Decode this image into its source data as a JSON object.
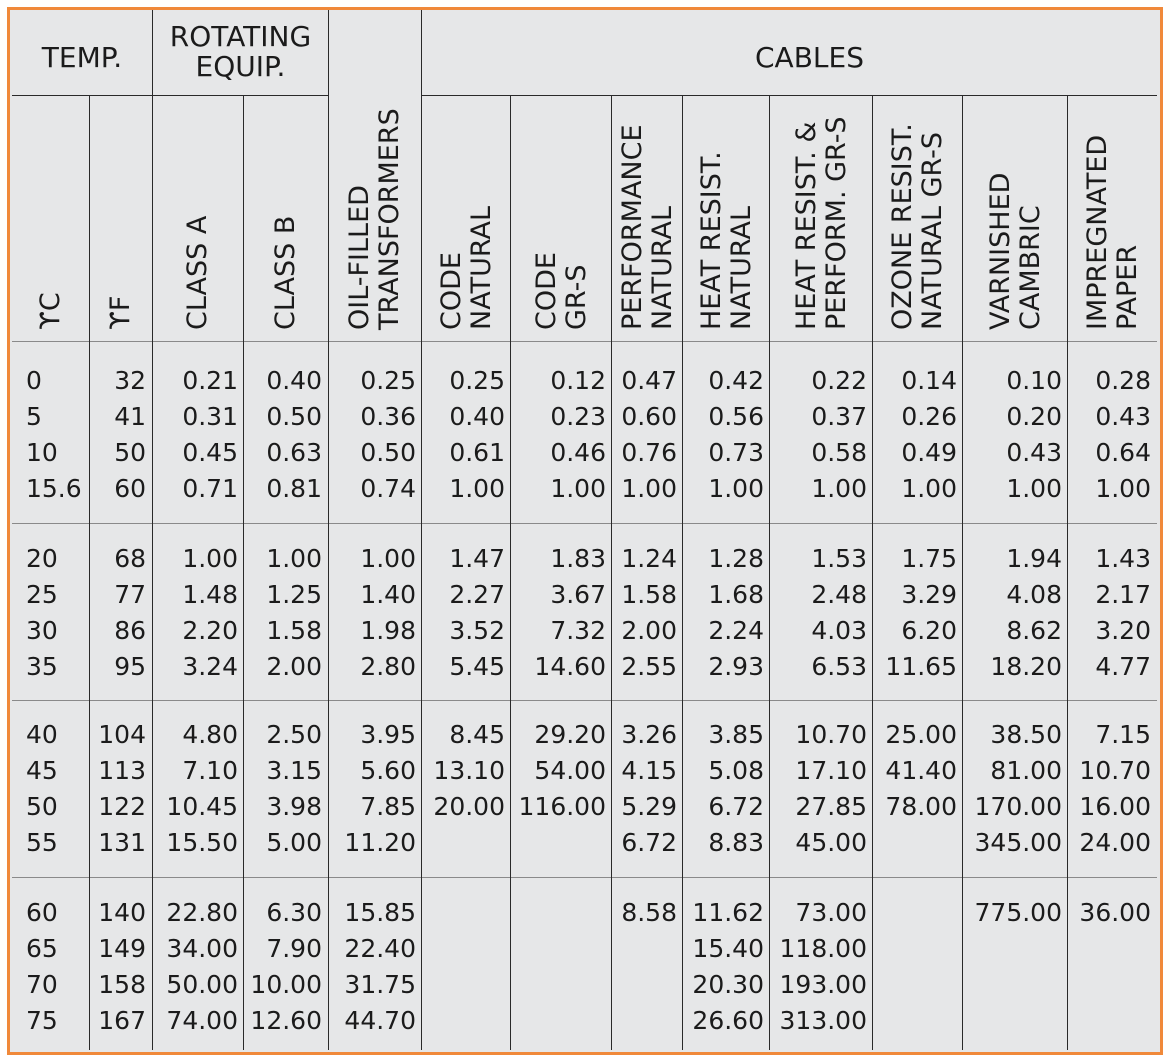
{
  "headers": {
    "temp": "TEMP.",
    "rotating_equip": "ROTATING\nEQUIP.",
    "cables": "CABLES"
  },
  "column_labels": [
    "ϒC",
    "ϒF",
    "CLASS A",
    "CLASS B",
    "OIL-FILLED\nTRANSFORMERS",
    "CODE\nNATURAL",
    "CODE\nGR-S",
    "PERFORMANCE\nNATURAL",
    "HEAT RESIST.\nNATURAL",
    "HEAT RESIST. &\nPERFORM. GR-S",
    "OZONE RESIST.\nNATURAL GR-S",
    "VARNISHED\nCAMBRIC",
    "IMPREGNATED\nPAPER"
  ],
  "row_groups": [
    {
      "rows": [
        [
          "0",
          "32",
          "0.21",
          "0.40",
          "0.25",
          "0.25",
          "0.12",
          "0.47",
          "0.42",
          "0.22",
          "0.14",
          "0.10",
          "0.28"
        ],
        [
          "5",
          "41",
          "0.31",
          "0.50",
          "0.36",
          "0.40",
          "0.23",
          "0.60",
          "0.56",
          "0.37",
          "0.26",
          "0.20",
          "0.43"
        ],
        [
          "10",
          "50",
          "0.45",
          "0.63",
          "0.50",
          "0.61",
          "0.46",
          "0.76",
          "0.73",
          "0.58",
          "0.49",
          "0.43",
          "0.64"
        ],
        [
          "15.6",
          "60",
          "0.71",
          "0.81",
          "0.74",
          "1.00",
          "1.00",
          "1.00",
          "1.00",
          "1.00",
          "1.00",
          "1.00",
          "1.00"
        ]
      ]
    },
    {
      "rows": [
        [
          "20",
          "68",
          "1.00",
          "1.00",
          "1.00",
          "1.47",
          "1.83",
          "1.24",
          "1.28",
          "1.53",
          "1.75",
          "1.94",
          "1.43"
        ],
        [
          "25",
          "77",
          "1.48",
          "1.25",
          "1.40",
          "2.27",
          "3.67",
          "1.58",
          "1.68",
          "2.48",
          "3.29",
          "4.08",
          "2.17"
        ],
        [
          "30",
          "86",
          "2.20",
          "1.58",
          "1.98",
          "3.52",
          "7.32",
          "2.00",
          "2.24",
          "4.03",
          "6.20",
          "8.62",
          "3.20"
        ],
        [
          "35",
          "95",
          "3.24",
          "2.00",
          "2.80",
          "5.45",
          "14.60",
          "2.55",
          "2.93",
          "6.53",
          "11.65",
          "18.20",
          "4.77"
        ]
      ]
    },
    {
      "rows": [
        [
          "40",
          "104",
          "4.80",
          "2.50",
          "3.95",
          "8.45",
          "29.20",
          "3.26",
          "3.85",
          "10.70",
          "25.00",
          "38.50",
          "7.15"
        ],
        [
          "45",
          "113",
          "7.10",
          "3.15",
          "5.60",
          "13.10",
          "54.00",
          "4.15",
          "5.08",
          "17.10",
          "41.40",
          "81.00",
          "10.70"
        ],
        [
          "50",
          "122",
          "10.45",
          "3.98",
          "7.85",
          "20.00",
          "116.00",
          "5.29",
          "6.72",
          "27.85",
          "78.00",
          "170.00",
          "16.00"
        ],
        [
          "55",
          "131",
          "15.50",
          "5.00",
          "11.20",
          "",
          "",
          "6.72",
          "8.83",
          "45.00",
          "",
          "345.00",
          "24.00"
        ]
      ]
    },
    {
      "rows": [
        [
          "60",
          "140",
          "22.80",
          "6.30",
          "15.85",
          "",
          "",
          "8.58",
          "11.62",
          "73.00",
          "",
          "775.00",
          "36.00"
        ],
        [
          "65",
          "149",
          "34.00",
          "7.90",
          "22.40",
          "",
          "",
          "",
          "15.40",
          "118.00",
          "",
          "",
          ""
        ],
        [
          "70",
          "158",
          "50.00",
          "10.00",
          "31.75",
          "",
          "",
          "",
          "20.30",
          "193.00",
          "",
          "",
          ""
        ],
        [
          "75",
          "167",
          "74.00",
          "12.60",
          "44.70",
          "",
          "",
          "",
          "26.60",
          "313.00",
          "",
          "",
          ""
        ]
      ]
    }
  ]
}
